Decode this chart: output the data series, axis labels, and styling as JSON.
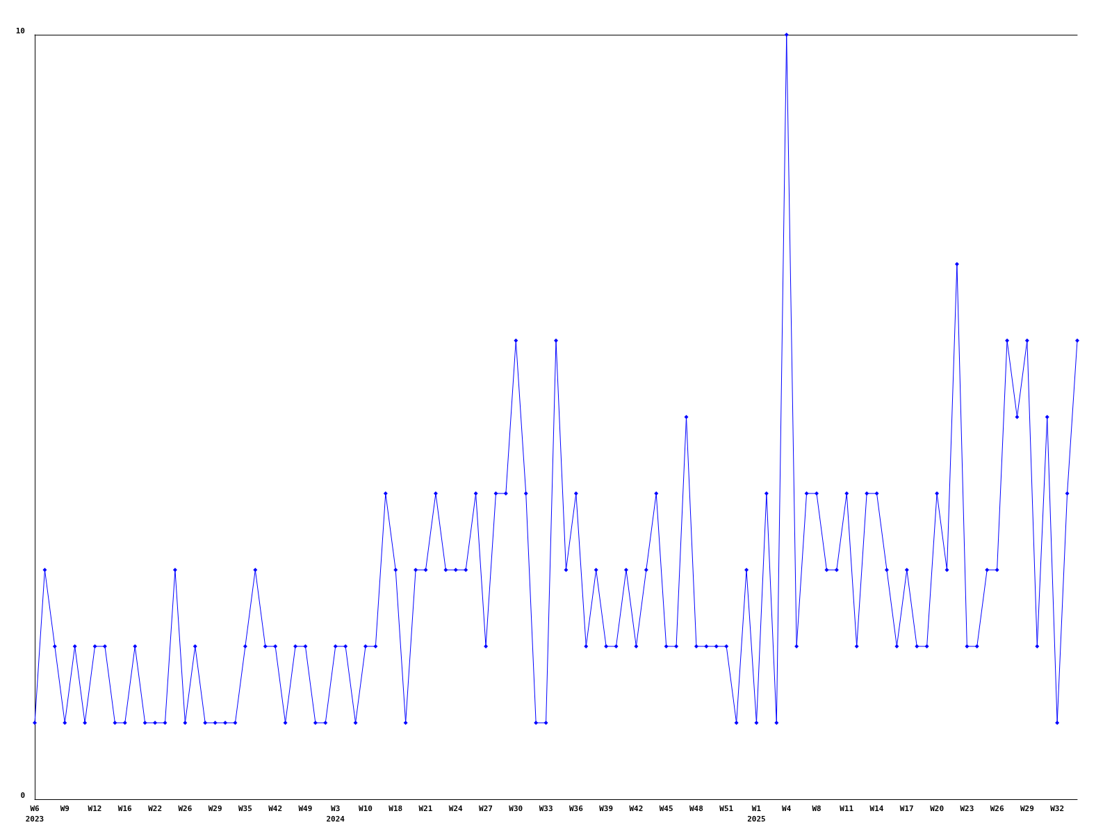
{
  "chart_data": {
    "type": "line",
    "categories": [
      "W6\n2023",
      null,
      null,
      "W9",
      null,
      null,
      "W12",
      null,
      null,
      "W16",
      null,
      null,
      "W22",
      null,
      null,
      "W26",
      null,
      null,
      "W29",
      null,
      null,
      "W35",
      null,
      null,
      "W42",
      null,
      null,
      "W49",
      null,
      null,
      "W3\n2024",
      null,
      null,
      "W10",
      null,
      null,
      "W18",
      null,
      null,
      "W21",
      null,
      null,
      "W24",
      null,
      null,
      "W27",
      null,
      null,
      "W30",
      null,
      null,
      "W33",
      null,
      null,
      "W36",
      null,
      null,
      "W39",
      null,
      null,
      "W42",
      null,
      null,
      "W45",
      null,
      null,
      "W48",
      null,
      null,
      "W51",
      null,
      null,
      "W1\n2025",
      null,
      null,
      "W4",
      null,
      null,
      "W8",
      null,
      null,
      "W11",
      null,
      null,
      "W14",
      null,
      null,
      "W17",
      null,
      null,
      "W20",
      null,
      null,
      "W23",
      null,
      null,
      "W26",
      null,
      null,
      "W29",
      null,
      null,
      "W32",
      null,
      null
    ],
    "series": [
      {
        "color": "#0000ff",
        "values": [
          1,
          3,
          2,
          1,
          2,
          1,
          2,
          2,
          1,
          1,
          2,
          1,
          1,
          1,
          3,
          1,
          2,
          1,
          1,
          1,
          1,
          2,
          3,
          2,
          2,
          1,
          2,
          2,
          1,
          1,
          2,
          2,
          1,
          2,
          2,
          4,
          3,
          1,
          3,
          3,
          4,
          3,
          3,
          3,
          4,
          2,
          4,
          4,
          6,
          4,
          1,
          1,
          6,
          3,
          4,
          2,
          3,
          2,
          2,
          3,
          2,
          3,
          4,
          2,
          2,
          5,
          2,
          2,
          2,
          2,
          1,
          3,
          1,
          4,
          1,
          10,
          2,
          4,
          4,
          3,
          3,
          4,
          2,
          4,
          4,
          3,
          2,
          3,
          2,
          2,
          4,
          3,
          7,
          2,
          2,
          3,
          3,
          6,
          5,
          6,
          2,
          5,
          1,
          4,
          6
        ]
      }
    ],
    "ylim": [
      0,
      10
    ],
    "yticks": [
      0,
      10
    ],
    "grid": false,
    "marker": "diamond",
    "line_style": "solid"
  }
}
